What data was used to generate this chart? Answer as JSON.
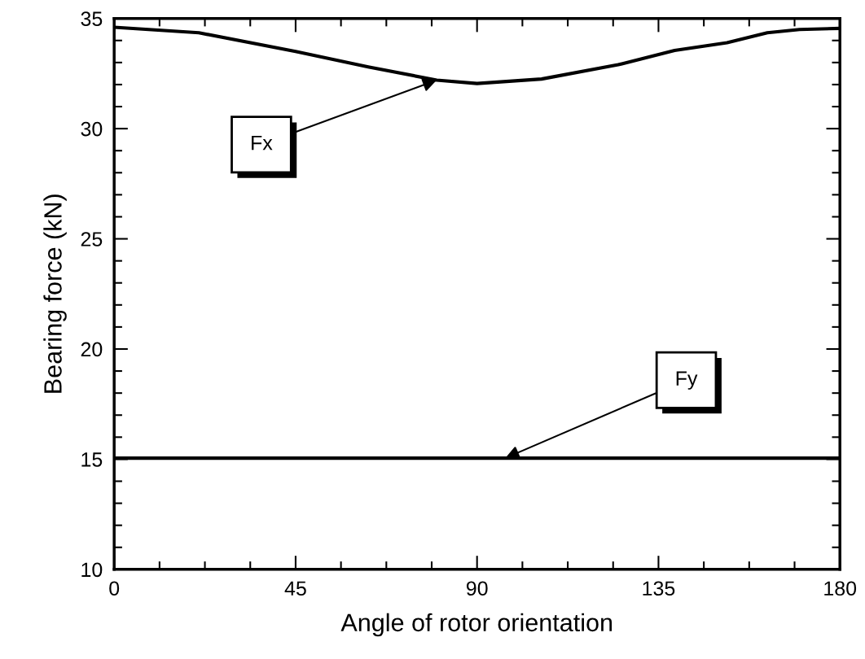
{
  "chart_data": {
    "type": "line",
    "xlabel": "Angle of rotor orientation",
    "ylabel": "Bearing force (kN)",
    "xlim": [
      0,
      180
    ],
    "xticks": [
      0,
      45,
      90,
      135,
      180
    ],
    "ylim": [
      10,
      35
    ],
    "yticks": [
      10,
      15,
      20,
      25,
      30,
      35
    ],
    "grid": false,
    "marker": "none",
    "line_style": "solid",
    "series": [
      {
        "color": "#000000",
        "x": [
          0,
          21,
          45,
          63,
          80,
          90,
          106,
          125,
          139,
          152,
          162,
          170,
          180
        ],
        "values": [
          34.6,
          34.35,
          33.5,
          32.8,
          32.2,
          32.05,
          32.25,
          32.9,
          33.55,
          33.9,
          34.35,
          34.5,
          34.55
        ]
      },
      {
        "color": "#000000",
        "x": [
          0,
          180
        ],
        "values": [
          15.05,
          15.05
        ]
      }
    ],
    "annotations": [
      {
        "text": "Fx",
        "x": 80,
        "y": 32.2
      },
      {
        "text": "Fy",
        "x": 97,
        "y": 15.05
      }
    ]
  }
}
